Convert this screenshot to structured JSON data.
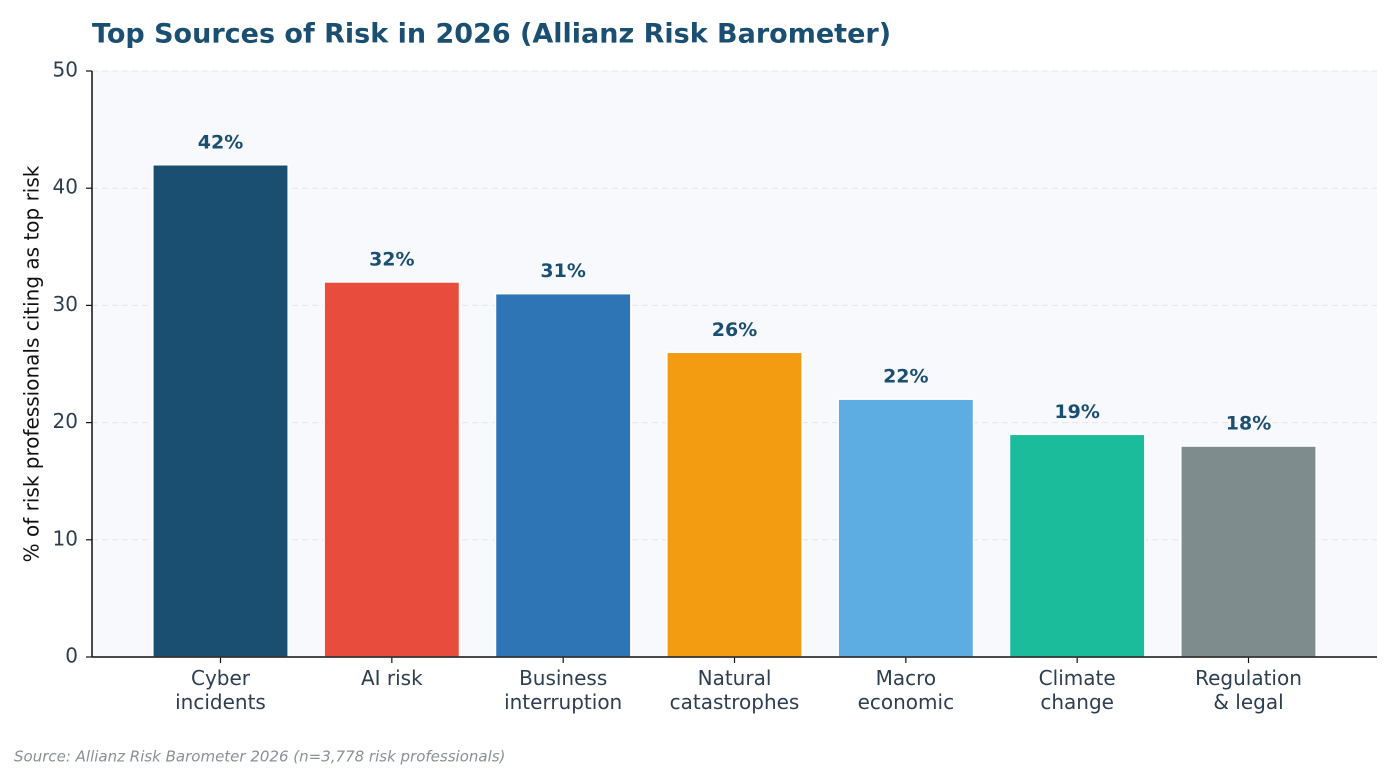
{
  "chart_data": {
    "type": "bar",
    "title": "Top Sources of Risk in 2026 (Allianz Risk Barometer)",
    "y_label": "% of risk professionals citing as top risk",
    "source": "Source: Allianz Risk Barometer 2026 (n=3,778 risk professionals)",
    "categories": [
      "Cyber\nincidents",
      "AI risk",
      "Business\ninterruption",
      "Natural\ncatastrophes",
      "Macro\neconomic",
      "Climate\nchange",
      "Regulation\n& legal"
    ],
    "values": [
      42,
      32,
      31,
      26,
      22,
      19,
      18
    ],
    "value_labels": [
      "42%",
      "32%",
      "31%",
      "26%",
      "22%",
      "19%",
      "18%"
    ],
    "colors": [
      "#1b4f72",
      "#e74c3c",
      "#2e75b6",
      "#f39c12",
      "#5dade2",
      "#1abc9c",
      "#7f8c8d"
    ],
    "ylim": [
      0,
      50
    ],
    "yticks": [
      0,
      10,
      20,
      30,
      40,
      50
    ],
    "grid": true
  }
}
